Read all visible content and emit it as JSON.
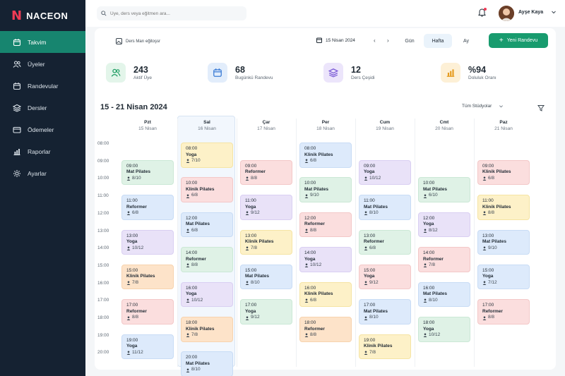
{
  "brand": {
    "mark": "N",
    "name": "NACEON"
  },
  "nav": [
    {
      "label": "Takvim",
      "icon": "calendar-icon",
      "active": true
    },
    {
      "label": "Üyeler",
      "icon": "users-icon",
      "active": false
    },
    {
      "label": "Randevular",
      "icon": "calendar-icon",
      "active": false
    },
    {
      "label": "Dersler",
      "icon": "layers-icon",
      "active": false
    },
    {
      "label": "Ödemeler",
      "icon": "card-icon",
      "active": false
    },
    {
      "label": "Raporlar",
      "icon": "chart-icon",
      "active": false
    },
    {
      "label": "Ayarlar",
      "icon": "gear-icon",
      "active": false
    }
  ],
  "search": {
    "placeholder": "Üye, ders veya eğitmen ara..."
  },
  "user": {
    "name": "Ayşe Kaya"
  },
  "toolbar": {
    "export_label": "Ders Marı eğitoşsr",
    "date": "15 Nisan 2024",
    "views": [
      "Gün",
      "Hafta",
      "Ay"
    ],
    "active_view": "Hafta",
    "new_button": "Yeni Randevu"
  },
  "stats": [
    {
      "value": "243",
      "label": "Aktif Üye",
      "icon": "users-icon",
      "color": "#e3f5ea",
      "icon_color": "#1f9d63"
    },
    {
      "value": "68",
      "label": "Bugünkü Randevu",
      "icon": "calendar-icon",
      "color": "#e2edfb",
      "icon_color": "#3a7bd5"
    },
    {
      "value": "12",
      "label": "Ders Çeşidi",
      "icon": "layers-icon",
      "color": "#ece5fb",
      "icon_color": "#7a5ad6"
    },
    {
      "value": "%94",
      "label": "Doluluk Oranı",
      "icon": "chart-icon",
      "color": "#fdf0d6",
      "icon_color": "#e59a1d"
    }
  ],
  "week": {
    "title": "15 - 21 Nisan 2024",
    "filter": "Tüm Stüdyolar"
  },
  "days": [
    {
      "name": "Pzt",
      "date": "15 Nisan"
    },
    {
      "name": "Sal",
      "date": "16 Nisan"
    },
    {
      "name": "Çar",
      "date": "17 Nisan"
    },
    {
      "name": "Per",
      "date": "18 Nisan"
    },
    {
      "name": "Cum",
      "date": "19 Nisan"
    },
    {
      "name": "Cmt",
      "date": "20 Nisan"
    },
    {
      "name": "Paz",
      "date": "21 Nisan"
    }
  ],
  "hours": [
    "08:00",
    "09:00",
    "10:00",
    "11:00",
    "12:00",
    "13:00",
    "14:00",
    "15:00",
    "16:00",
    "17:00",
    "18:00",
    "19:00",
    "20:00"
  ],
  "events": [
    [
      {
        "time": "09:00",
        "name": "Mat Pilates",
        "cap": "8/10",
        "color": "green"
      },
      {
        "time": "11:00",
        "name": "Reformer",
        "cap": "6/8",
        "color": "blue"
      },
      {
        "time": "13:00",
        "name": "Yoga",
        "cap": "10/12",
        "color": "purple"
      },
      {
        "time": "15:00",
        "name": "Klinik Pilates",
        "cap": "7/8",
        "color": "orange"
      },
      {
        "time": "17:00",
        "name": "Reformer",
        "cap": "8/8",
        "color": "red"
      },
      {
        "time": "19:00",
        "name": "Yoga",
        "cap": "11/12",
        "color": "blue"
      }
    ],
    [
      {
        "time": "08:00",
        "name": "Yoga",
        "cap": "7/10",
        "color": "yellow"
      },
      {
        "time": "10:00",
        "name": "Klinik Pilates",
        "cap": "6/8",
        "color": "red"
      },
      {
        "time": "12:00",
        "name": "Mat Pilates",
        "cap": "6/8",
        "color": "blue"
      },
      {
        "time": "14:00",
        "name": "Reformer",
        "cap": "8/8",
        "color": "green"
      },
      {
        "time": "16:00",
        "name": "Yoga",
        "cap": "10/12",
        "color": "purple"
      },
      {
        "time": "18:00",
        "name": "Klinik Pilates",
        "cap": "7/8",
        "color": "orange"
      },
      {
        "time": "20:00",
        "name": "Mat Pilates",
        "cap": "8/10",
        "color": "blue"
      }
    ],
    [
      {
        "time": "09:00",
        "name": "Reformer",
        "cap": "8/8",
        "color": "red"
      },
      {
        "time": "11:00",
        "name": "Yoga",
        "cap": "9/12",
        "color": "purple"
      },
      {
        "time": "13:00",
        "name": "Klinik Pilates",
        "cap": "7/8",
        "color": "yellow"
      },
      {
        "time": "15:00",
        "name": "Mat Pilates",
        "cap": "8/10",
        "color": "blue"
      },
      {
        "time": "17:00",
        "name": "Yoga",
        "cap": "9/12",
        "color": "green"
      }
    ],
    [
      {
        "time": "08:00",
        "name": "Klinik Pilates",
        "cap": "6/8",
        "color": "blue"
      },
      {
        "time": "10:00",
        "name": "Mat Pilates",
        "cap": "9/10",
        "color": "green"
      },
      {
        "time": "12:00",
        "name": "Reformer",
        "cap": "8/8",
        "color": "red"
      },
      {
        "time": "14:00",
        "name": "Yoga",
        "cap": "10/12",
        "color": "purple"
      },
      {
        "time": "16:00",
        "name": "Klinik Pilates",
        "cap": "6/8",
        "color": "yellow"
      },
      {
        "time": "18:00",
        "name": "Reformer",
        "cap": "8/8",
        "color": "orange"
      }
    ],
    [
      {
        "time": "09:00",
        "name": "Yoga",
        "cap": "10/12",
        "color": "purple"
      },
      {
        "time": "11:00",
        "name": "Mat Pilates",
        "cap": "8/10",
        "color": "blue"
      },
      {
        "time": "13:00",
        "name": "Reformer",
        "cap": "6/8",
        "color": "green"
      },
      {
        "time": "15:00",
        "name": "Yoga",
        "cap": "9/12",
        "color": "red"
      },
      {
        "time": "17:00",
        "name": "Mat Pilates",
        "cap": "8/10",
        "color": "blue"
      },
      {
        "time": "19:00",
        "name": "Klinik Pilates",
        "cap": "7/8",
        "color": "yellow"
      }
    ],
    [
      {
        "time": "10:00",
        "name": "Mat Pilates",
        "cap": "6/10",
        "color": "green"
      },
      {
        "time": "12:00",
        "name": "Yoga",
        "cap": "8/12",
        "color": "purple"
      },
      {
        "time": "14:00",
        "name": "Reformer",
        "cap": "7/8",
        "color": "red"
      },
      {
        "time": "16:00",
        "name": "Mat Pilates",
        "cap": "8/10",
        "color": "blue"
      },
      {
        "time": "18:00",
        "name": "Yoga",
        "cap": "10/12",
        "color": "green"
      }
    ],
    [
      {
        "time": "09:00",
        "name": "Klinik Pilates",
        "cap": "6/8",
        "color": "red"
      },
      {
        "time": "11:00",
        "name": "Klinik Pilates",
        "cap": "8/8",
        "color": "yellow"
      },
      {
        "time": "13:00",
        "name": "Mat Pilates",
        "cap": "9/10",
        "color": "blue"
      },
      {
        "time": "15:00",
        "name": "Yoga",
        "cap": "7/12",
        "color": "blue"
      },
      {
        "time": "17:00",
        "name": "Reformer",
        "cap": "8/8",
        "color": "red"
      }
    ]
  ]
}
